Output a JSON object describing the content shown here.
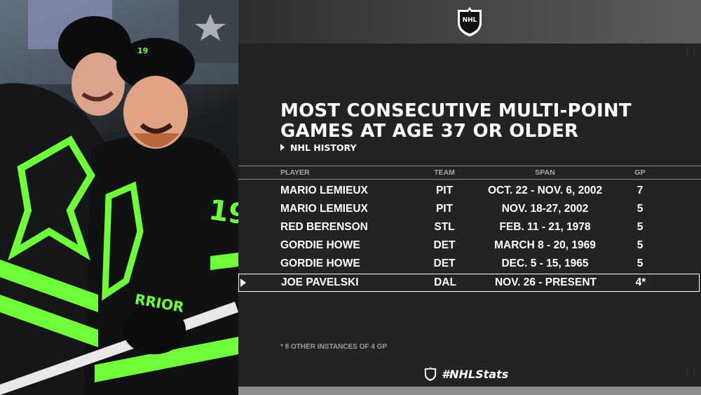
{
  "graphic": {
    "title_line1": "MOST CONSECUTIVE MULTI-POINT",
    "title_line2": "GAMES AT AGE 37 OR OLDER",
    "subtitle": "NHL HISTORY",
    "footnote": "* 8 OTHER INSTANCES OF 4 GP",
    "hashtag": "#NHLStats",
    "logo_text": "NHL"
  },
  "photo": {
    "jersey_text": "RRIOR",
    "jersey_number": "19",
    "helmet_number": "19"
  },
  "table": {
    "headers": {
      "player": "PLAYER",
      "team": "TEAM",
      "span": "SPAN",
      "gp": "GP"
    },
    "rows": [
      {
        "player": "MARIO LEMIEUX",
        "team": "PIT",
        "span": "OCT. 22 - NOV. 6, 2002",
        "gp": "7"
      },
      {
        "player": "MARIO LEMIEUX",
        "team": "PIT",
        "span": "NOV. 18-27, 2002",
        "gp": "5"
      },
      {
        "player": "RED BERENSON",
        "team": "STL",
        "span": "FEB. 11 - 21, 1978",
        "gp": "5"
      },
      {
        "player": "GORDIE HOWE",
        "team": "DET",
        "span": "MARCH 8 - 20, 1969",
        "gp": "5"
      },
      {
        "player": "GORDIE HOWE",
        "team": "DET",
        "span": "DEC. 5 - 15, 1965",
        "gp": "5"
      },
      {
        "player": "JOE PAVELSKI",
        "team": "DAL",
        "span": "NOV. 26 - PRESENT",
        "gp": "4*"
      }
    ]
  },
  "colors": {
    "card_bg": "#232325",
    "text": "#ffffff",
    "muted": "#a6a6a8",
    "jersey_green": "#6fff3a",
    "jersey_dark": "#111314"
  }
}
